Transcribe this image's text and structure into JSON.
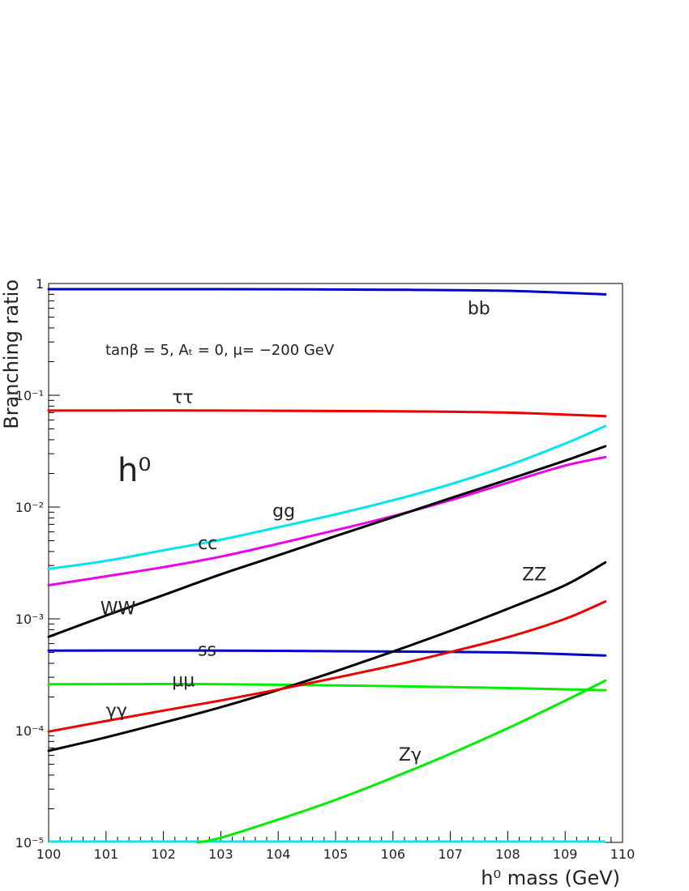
{
  "chart_data": {
    "type": "line",
    "title": "",
    "xlabel": "h⁰ mass (GeV)",
    "ylabel": "Branching ratio",
    "annotation": "tanβ = 5, Aₜ = 0, μ= −200 GeV",
    "particle_label": "h⁰",
    "log_y": true,
    "grid": false,
    "xlim": [
      100,
      110
    ],
    "ylim": [
      1e-05,
      1
    ],
    "x_ticks": [
      "100",
      "101",
      "102",
      "103",
      "104",
      "105",
      "106",
      "107",
      "108",
      "109",
      "110"
    ],
    "y_ticks": [
      {
        "value": 1,
        "label": "1"
      },
      {
        "value": 0.1,
        "label": "10⁻¹"
      },
      {
        "value": 0.01,
        "label": "10⁻²"
      },
      {
        "value": 0.001,
        "label": "10⁻³"
      },
      {
        "value": 0.0001,
        "label": "10⁻⁴"
      },
      {
        "value": 1e-05,
        "label": "10⁻⁵"
      }
    ],
    "series": [
      {
        "name": "bb",
        "color": "#0000cc",
        "x": [
          100,
          103,
          106,
          108,
          109.7
        ],
        "values": [
          0.89,
          0.89,
          0.88,
          0.86,
          0.8
        ]
      },
      {
        "name": "ττ",
        "color": "#ee0000",
        "x": [
          100,
          103,
          106,
          108,
          109.7
        ],
        "values": [
          0.073,
          0.073,
          0.072,
          0.07,
          0.065
        ]
      },
      {
        "name": "gg",
        "color": "#00e5ee",
        "x": [
          100,
          101,
          102,
          103,
          104,
          105,
          106,
          107,
          108,
          109,
          109.7
        ],
        "values": [
          0.0028,
          0.0033,
          0.0041,
          0.0051,
          0.0066,
          0.0086,
          0.0115,
          0.016,
          0.0235,
          0.037,
          0.053
        ]
      },
      {
        "name": "cc",
        "color": "#ee00ee",
        "x": [
          100,
          101,
          102,
          103,
          104,
          105,
          106,
          107,
          108,
          109,
          109.7
        ],
        "values": [
          0.002,
          0.0024,
          0.0029,
          0.0036,
          0.0047,
          0.0062,
          0.0083,
          0.0115,
          0.0165,
          0.0235,
          0.028
        ]
      },
      {
        "name": "WW",
        "color": "#000000",
        "x": [
          100,
          101,
          102,
          103,
          104,
          105,
          106,
          107,
          108,
          109,
          109.7
        ],
        "values": [
          0.00069,
          0.00107,
          0.00163,
          0.0025,
          0.0037,
          0.0055,
          0.0081,
          0.012,
          0.0176,
          0.026,
          0.035
        ]
      },
      {
        "name": "ss",
        "color": "#0000cc",
        "x": [
          100,
          103,
          106,
          108,
          109.7
        ],
        "values": [
          0.00052,
          0.00052,
          0.00051,
          0.0005,
          0.00047
        ]
      },
      {
        "name": "μμ",
        "color": "#00ee00",
        "x": [
          100,
          103,
          106,
          108,
          109.7
        ],
        "values": [
          0.00026,
          0.00026,
          0.00025,
          0.00024,
          0.00023
        ]
      },
      {
        "name": "ZZ",
        "color": "#000000",
        "x": [
          100,
          101,
          102,
          103,
          104,
          105,
          106,
          107,
          108,
          109,
          109.7
        ],
        "values": [
          6.6e-05,
          8.7e-05,
          0.000118,
          0.000162,
          0.000231,
          0.000339,
          0.00051,
          0.00078,
          0.00123,
          0.002,
          0.0032
        ]
      },
      {
        "name": "γγ",
        "color": "#ee0000",
        "x": [
          100,
          101,
          102,
          103,
          104,
          105,
          106,
          107,
          108,
          109,
          109.7
        ],
        "values": [
          9.8e-05,
          0.000122,
          0.000151,
          0.000186,
          0.000233,
          0.000297,
          0.000382,
          0.000505,
          0.000685,
          0.001,
          0.00143
        ]
      },
      {
        "name": "Zγ",
        "color": "#00ee00",
        "x": [
          102.6,
          103,
          104,
          105,
          106,
          107,
          108,
          109,
          109.7
        ],
        "values": [
          1e-05,
          1.1e-05,
          1.6e-05,
          2.4e-05,
          3.8e-05,
          6.2e-05,
          0.000105,
          0.000185,
          0.00028
        ]
      }
    ],
    "baseline": {
      "color": "#00e5ee",
      "y": 1e-05,
      "x": [
        100,
        109.7
      ]
    },
    "series_labels": [
      {
        "text": "bb",
        "x": 107.3,
        "y": 0.53
      },
      {
        "text": "ττ",
        "x": 102.15,
        "y": 0.085
      },
      {
        "text": "gg",
        "x": 103.9,
        "y": 0.0082
      },
      {
        "text": "cc",
        "x": 102.6,
        "y": 0.0042
      },
      {
        "text": "WW",
        "x": 100.9,
        "y": 0.0011
      },
      {
        "text": "ZZ",
        "x": 108.25,
        "y": 0.0022
      },
      {
        "text": "ss",
        "x": 102.6,
        "y": 0.00047
      },
      {
        "text": "μμ",
        "x": 102.15,
        "y": 0.00025
      },
      {
        "text": "γγ",
        "x": 101.0,
        "y": 0.000134
      },
      {
        "text": "Zγ",
        "x": 106.1,
        "y": 5.4e-05
      }
    ]
  }
}
